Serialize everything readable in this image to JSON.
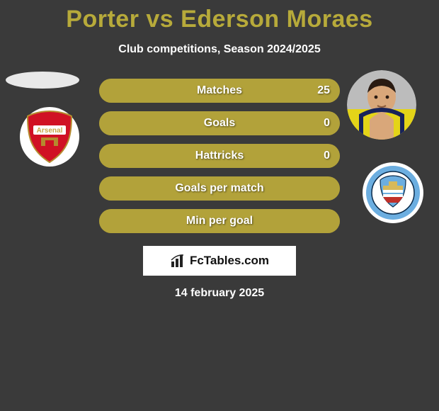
{
  "page": {
    "background_color": "#3a3a3a",
    "title_color": "#b7aa3a",
    "text_color": "#ffffff"
  },
  "header": {
    "title": "Porter vs Ederson Moraes",
    "subtitle": "Club competitions, Season 2024/2025"
  },
  "left": {
    "player_placeholder_bg": "#e8e8e8",
    "club_name": "Arsenal",
    "club_bg": "#ffffff",
    "club_crest_bg": "#d01124",
    "club_crest_text": "Arsenal"
  },
  "right": {
    "player_name": "Ederson Moraes",
    "player_shirt": "#e4d418",
    "player_skin": "#d9a77a",
    "player_hair": "#2a1b12",
    "club_name": "Manchester City",
    "club_bg": "#ffffff",
    "club_crest_outer": "#6caee0",
    "club_crest_inner": "#ffffff"
  },
  "chart": {
    "row_bg": "#87792a",
    "left_bar_color": "#b2a23a",
    "right_bar_color": "#b2a23a",
    "label_color": "#ffffff",
    "value_color": "#ffffff",
    "rows": [
      {
        "label": "Matches",
        "left_pct": 1,
        "right_pct": 99,
        "right_value": "25"
      },
      {
        "label": "Goals",
        "left_pct": 50,
        "right_pct": 50,
        "right_value": "0"
      },
      {
        "label": "Hattricks",
        "left_pct": 50,
        "right_pct": 50,
        "right_value": "0"
      },
      {
        "label": "Goals per match",
        "left_pct": 50,
        "right_pct": 50,
        "right_value": ""
      },
      {
        "label": "Min per goal",
        "left_pct": 50,
        "right_pct": 50,
        "right_value": ""
      }
    ]
  },
  "brand": {
    "box_bg": "#ffffff",
    "icon_color": "#222222",
    "text": "FcTables.com",
    "text_color": "#111111"
  },
  "footer": {
    "date": "14 february 2025"
  }
}
